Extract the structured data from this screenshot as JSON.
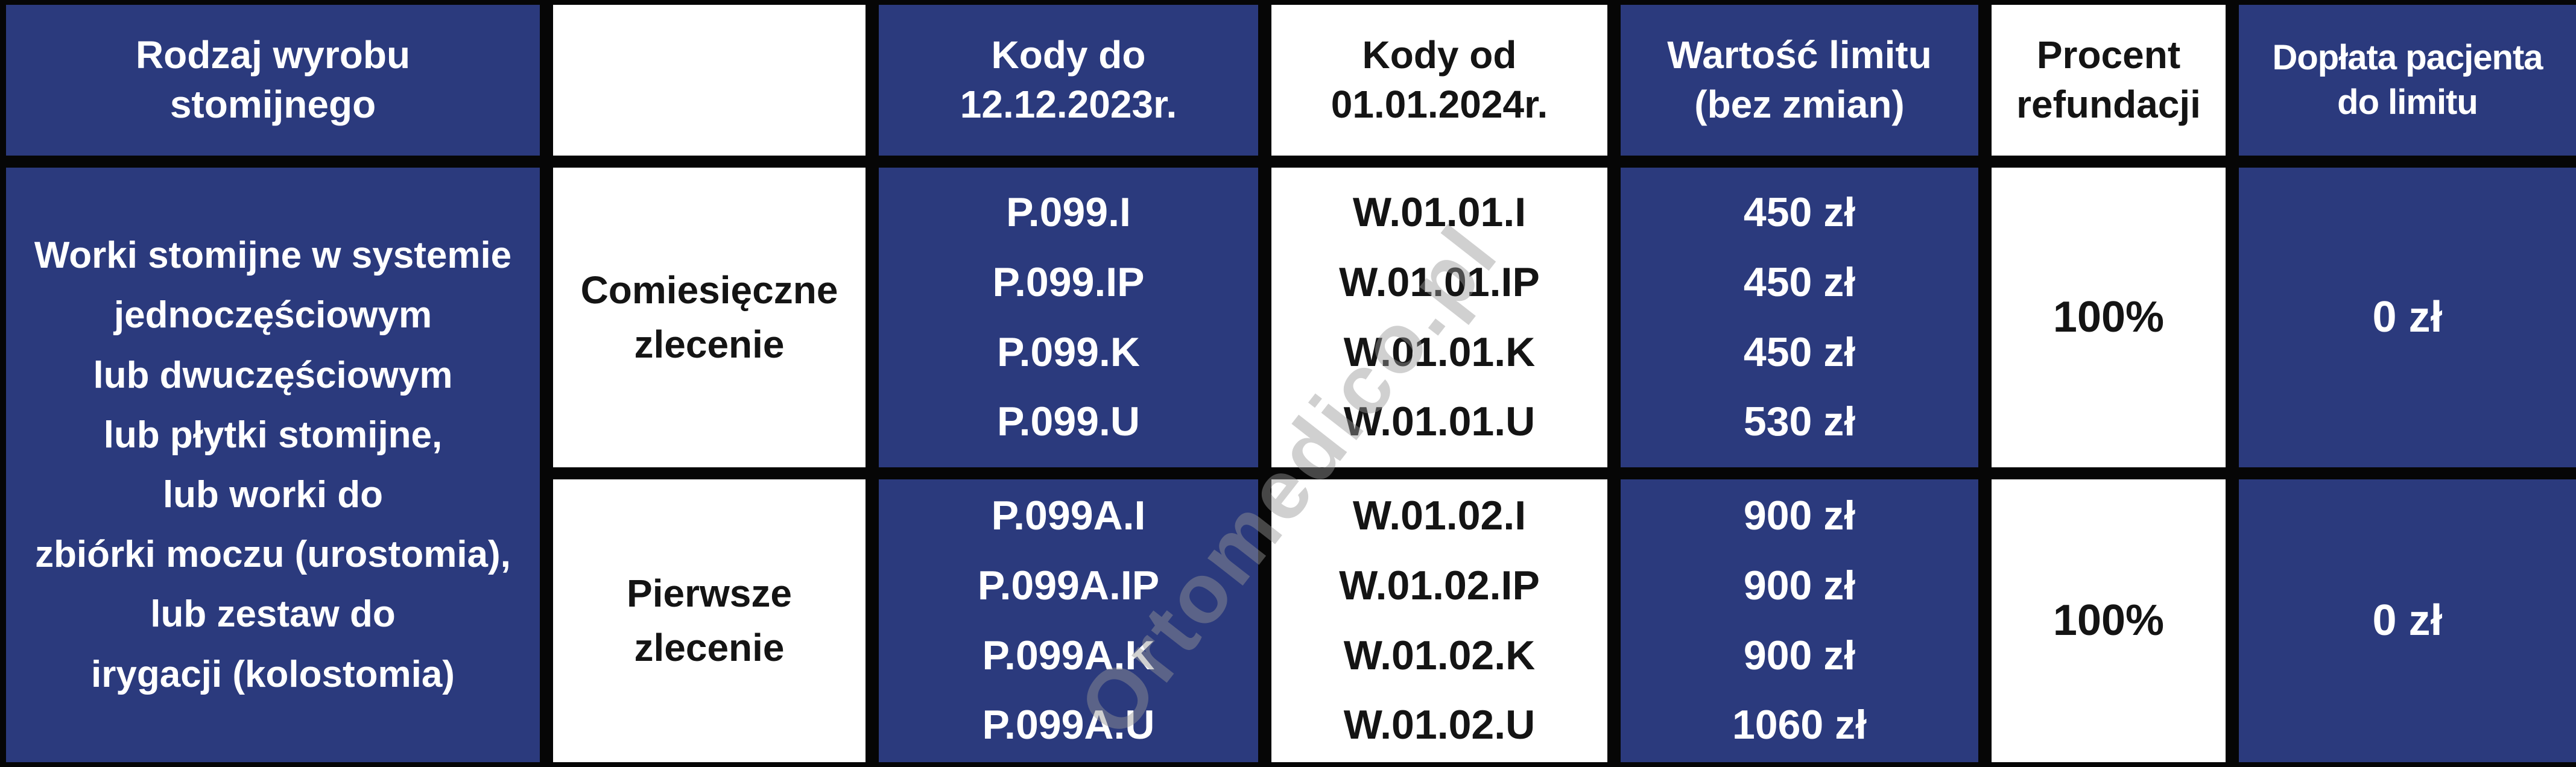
{
  "table": {
    "header": {
      "col1": "Rodzaj wyrobu\nstomijnego",
      "col2": "",
      "col3": "Kody do\n12.12.2023r.",
      "col4": "Kody od\n01.01.2024r.",
      "col5": "Wartość limitu\n(bez zmian)",
      "col6": "Procent\nrefundacji",
      "col7": "Dopłata pacjenta\ndo limitu"
    },
    "product_type": "Worki stomijne w systemie\njednoczęściowym\nlub dwuczęściowym\nlub płytki stomijne,\nlub worki do\nzbiórki moczu (urostomia),\nlub zestaw do\nirygacji (kolostomia)",
    "rows": [
      {
        "order_type": "Comiesięczne\nzlecenie",
        "codes_old": "P.099.I\nP.099.IP\nP.099.K\nP.099.U",
        "codes_new": "W.01.01.I\nW.01.01.IP\nW.01.01.K\nW.01.01.U",
        "limit_values": "450 zł\n450 zł\n450 zł\n530 zł",
        "refund_percent": "100%",
        "patient_copay": "0 zł"
      },
      {
        "order_type": "Pierwsze\nzlecenie",
        "codes_old": "P.099A.I\nP.099A.IP\nP.099A.K\nP.099A.U",
        "codes_new": "W.01.02.I\nW.01.02.IP\nW.01.02.K\nW.01.02.U",
        "limit_values": "900 zł\n900 zł\n900 zł\n1060 zł",
        "refund_percent": "100%",
        "patient_copay": "0 zł"
      }
    ]
  },
  "watermark": "Ortomedico.pl",
  "colors": {
    "navy": "#2b3a7d",
    "border_black": "#060606",
    "cell_white": "#ffffff",
    "text_white": "#ffffff",
    "text_black": "#141414",
    "watermark_gray": "#969696"
  },
  "chart_data": {
    "type": "table",
    "title": "Refundacja wyrobów stomijnych — kody i limity",
    "columns": [
      "Rodzaj wyrobu stomijnego",
      "",
      "Kody do 12.12.2023r.",
      "Kody od 01.01.2024r.",
      "Wartość limitu (bez zmian)",
      "Procent refundacji",
      "Dopłata pacjenta do limitu"
    ],
    "rows": [
      [
        "Worki stomijne w systemie jednoczęściowym lub dwuczęściowym lub płytki stomijne, lub worki do zbiórki moczu (urostomia), lub zestaw do irygacji (kolostomia)",
        "Comiesięczne zlecenie",
        "P.099.I; P.099.IP; P.099.K; P.099.U",
        "W.01.01.I; W.01.01.IP; W.01.01.K; W.01.01.U",
        "450 zł; 450 zł; 450 zł; 530 zł",
        "100%",
        "0 zł"
      ],
      [
        "(komórka scalona z wierszem 1)",
        "Pierwsze zlecenie",
        "P.099A.I; P.099A.IP; P.099A.K; P.099A.U",
        "W.01.02.I; W.01.02.IP; W.01.02.K; W.01.02.U",
        "900 zł; 900 zł; 900 zł; 1060 zł",
        "100%",
        "0 zł"
      ]
    ],
    "layout": {
      "merged_cells": [
        "column 1 spans both body rows"
      ],
      "blue_columns": [
        1,
        3,
        5,
        7
      ],
      "white_columns": [
        2,
        4,
        6
      ],
      "grid": "thick black borders"
    }
  }
}
